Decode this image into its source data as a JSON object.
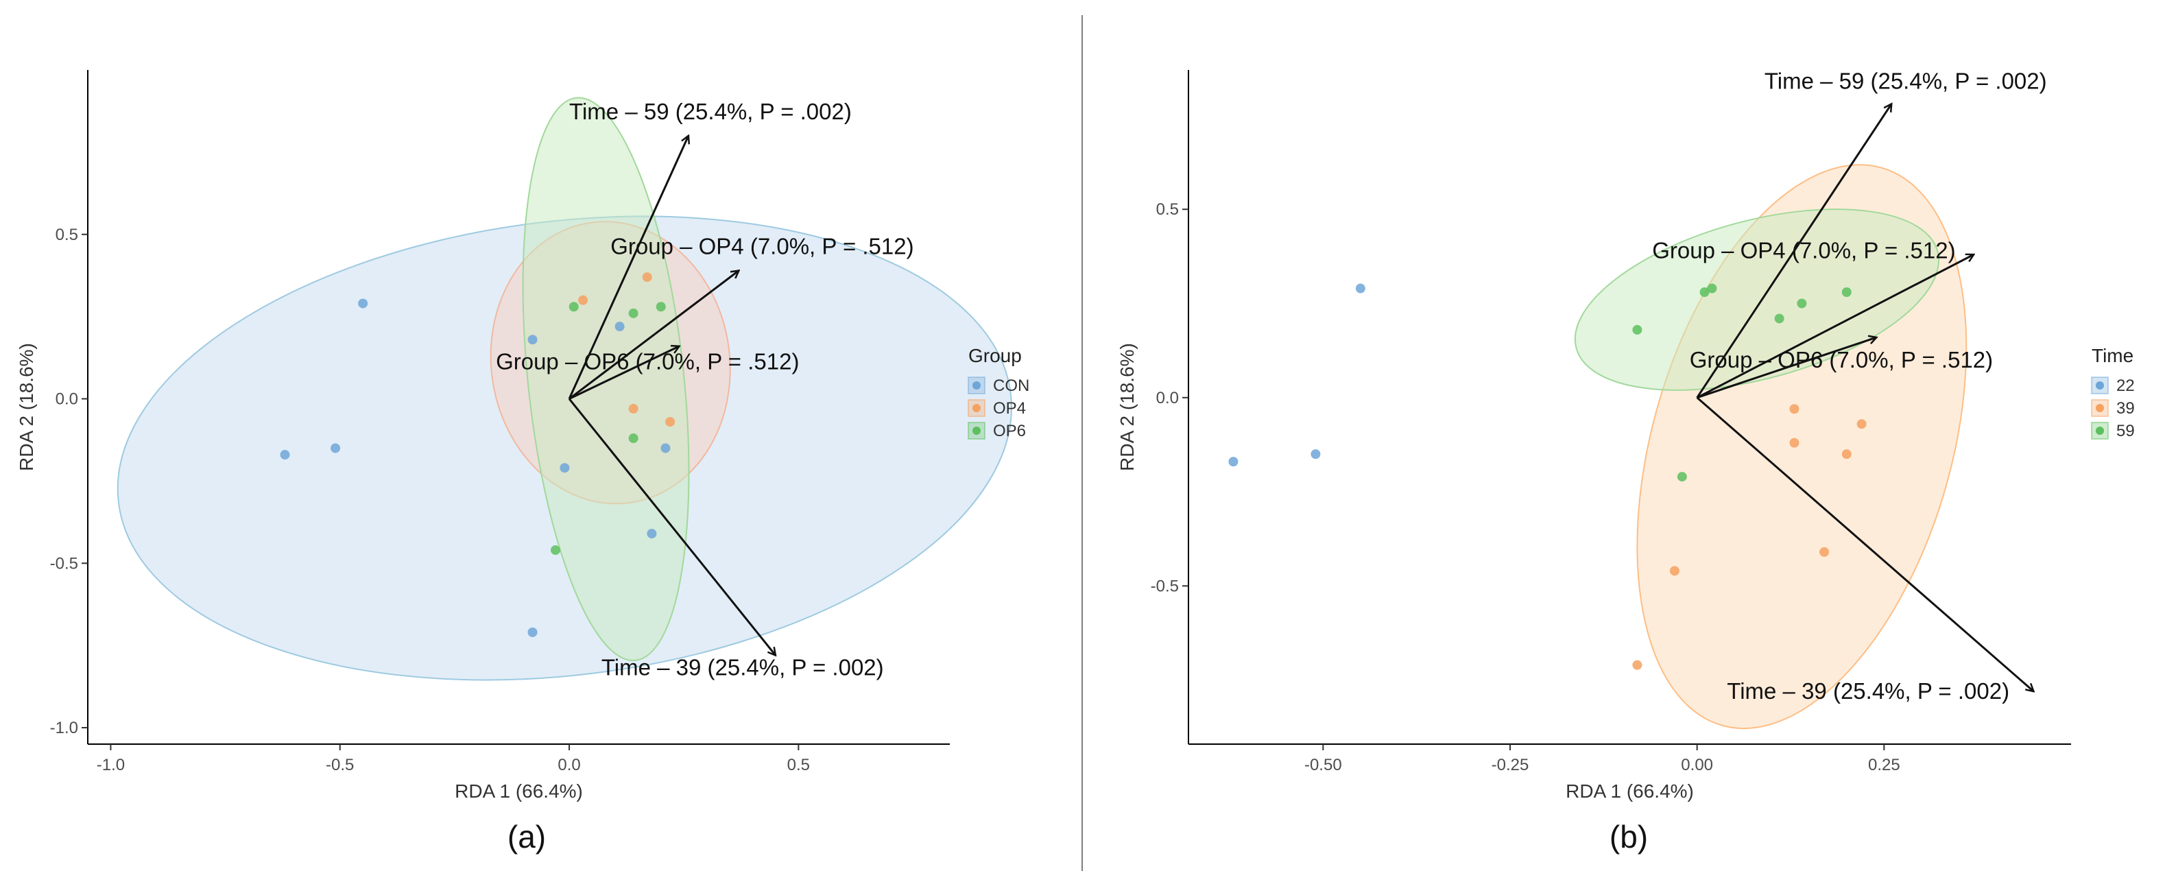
{
  "chart_data": [
    {
      "type": "scatter",
      "panel_label": "(a)",
      "xlabel": "RDA 1 (66.4%)",
      "ylabel": "RDA 2 (18.6%)",
      "xlim": [
        -1.05,
        0.83
      ],
      "ylim": [
        -1.05,
        1.0
      ],
      "xticks": [
        -1.0,
        -0.5,
        0.0,
        0.5
      ],
      "xtick_labels": [
        "-1.0",
        "-0.5",
        "0.0",
        "0.5"
      ],
      "yticks": [
        -1.0,
        -0.5,
        0.0,
        0.5
      ],
      "ytick_labels": [
        "-1.0",
        "-0.5",
        "0.0",
        "0.5"
      ],
      "legend": {
        "title": "Group",
        "position": "right",
        "entries": [
          {
            "label": "CON",
            "color": "#6ea6d8"
          },
          {
            "label": "OP4",
            "color": "#f5a15f"
          },
          {
            "label": "OP6",
            "color": "#5cbf5e"
          }
        ]
      },
      "ellipses": [
        {
          "group": "CON",
          "cx": -0.01,
          "cy": -0.15,
          "rx": 0.98,
          "ry": 0.69,
          "angle": -7,
          "fill": "#c6dbef",
          "stroke": "#9ecae1"
        },
        {
          "group": "OP4",
          "cx": 0.09,
          "cy": 0.11,
          "rx": 0.26,
          "ry": 0.43,
          "angle": -8,
          "fill": "#f9cfc0",
          "stroke": "#f2b8a0"
        },
        {
          "group": "OP6",
          "cx": 0.08,
          "cy": 0.06,
          "rx": 0.17,
          "ry": 0.86,
          "angle": -6,
          "fill": "#c7e9c0",
          "stroke": "#a1d99b"
        }
      ],
      "points": [
        {
          "x": -0.45,
          "y": 0.29,
          "group": "CON"
        },
        {
          "x": -0.62,
          "y": -0.17,
          "group": "CON"
        },
        {
          "x": -0.51,
          "y": -0.15,
          "group": "CON"
        },
        {
          "x": -0.08,
          "y": 0.18,
          "group": "CON"
        },
        {
          "x": 0.11,
          "y": 0.22,
          "group": "CON"
        },
        {
          "x": -0.01,
          "y": -0.21,
          "group": "CON"
        },
        {
          "x": 0.18,
          "y": -0.41,
          "group": "CON"
        },
        {
          "x": -0.08,
          "y": -0.71,
          "group": "CON"
        },
        {
          "x": 0.21,
          "y": -0.15,
          "group": "CON"
        },
        {
          "x": 0.03,
          "y": 0.3,
          "group": "OP4"
        },
        {
          "x": 0.17,
          "y": 0.37,
          "group": "OP4"
        },
        {
          "x": 0.14,
          "y": -0.03,
          "group": "OP4"
        },
        {
          "x": 0.22,
          "y": -0.07,
          "group": "OP4"
        },
        {
          "x": 0.01,
          "y": 0.28,
          "group": "OP6"
        },
        {
          "x": 0.14,
          "y": 0.26,
          "group": "OP6"
        },
        {
          "x": 0.2,
          "y": 0.28,
          "group": "OP6"
        },
        {
          "x": 0.14,
          "y": -0.12,
          "group": "OP6"
        },
        {
          "x": -0.03,
          "y": -0.46,
          "group": "OP6"
        }
      ],
      "arrows": [
        {
          "label": "Time – 59 (25.4%, P = .002)",
          "x": 0.26,
          "y": 0.8,
          "label_x": 0.0,
          "label_y": 0.85,
          "anchor": "start"
        },
        {
          "label": "Group – OP4 (7.0%, P = .512)",
          "x": 0.37,
          "y": 0.39,
          "label_x": 0.09,
          "label_y": 0.44,
          "anchor": "start"
        },
        {
          "label": "Group – OP6 (7.0%, P = .512)",
          "x": 0.24,
          "y": 0.16,
          "label_x": -0.16,
          "label_y": 0.09,
          "anchor": "start"
        },
        {
          "label": "Time – 39 (25.4%, P = .002)",
          "x": 0.45,
          "y": -0.78,
          "label_x": 0.07,
          "label_y": -0.84,
          "anchor": "start"
        }
      ]
    },
    {
      "type": "scatter",
      "panel_label": "(b)",
      "xlabel": "RDA 1 (66.4%)",
      "ylabel": "RDA 2 (18.6%)",
      "xlim": [
        -0.68,
        0.5
      ],
      "ylim": [
        -0.92,
        0.87
      ],
      "xticks": [
        -0.5,
        -0.25,
        0.0,
        0.25
      ],
      "xtick_labels": [
        "-0.50",
        "-0.25",
        "0.00",
        "0.25"
      ],
      "yticks": [
        -0.5,
        0.0,
        0.5
      ],
      "ytick_labels": [
        "-0.5",
        "0.0",
        "0.5"
      ],
      "legend": {
        "title": "Time",
        "position": "right",
        "entries": [
          {
            "label": "22",
            "color": "#6ea6d8"
          },
          {
            "label": "39",
            "color": "#f5a15f"
          },
          {
            "label": "59",
            "color": "#5cbf5e"
          }
        ]
      },
      "ellipses": [
        {
          "group": "39",
          "cx": 0.14,
          "cy": -0.13,
          "rx": 0.2,
          "ry": 0.77,
          "angle": 16,
          "fill": "#fdd9b5",
          "stroke": "#fdbe85"
        },
        {
          "group": "59",
          "cx": 0.08,
          "cy": 0.26,
          "rx": 0.25,
          "ry": 0.21,
          "angle": -15,
          "fill": "#c7e9c0",
          "stroke": "#a1d99b"
        }
      ],
      "points": [
        {
          "x": -0.45,
          "y": 0.29,
          "group": "22"
        },
        {
          "x": -0.62,
          "y": -0.17,
          "group": "22"
        },
        {
          "x": -0.51,
          "y": -0.15,
          "group": "22"
        },
        {
          "x": 0.13,
          "y": -0.03,
          "group": "39"
        },
        {
          "x": 0.22,
          "y": -0.07,
          "group": "39"
        },
        {
          "x": 0.13,
          "y": -0.12,
          "group": "39"
        },
        {
          "x": 0.2,
          "y": -0.15,
          "group": "39"
        },
        {
          "x": 0.17,
          "y": -0.41,
          "group": "39"
        },
        {
          "x": -0.03,
          "y": -0.46,
          "group": "39"
        },
        {
          "x": -0.08,
          "y": -0.71,
          "group": "39"
        },
        {
          "x": 0.01,
          "y": 0.28,
          "group": "59"
        },
        {
          "x": 0.02,
          "y": 0.29,
          "group": "59"
        },
        {
          "x": 0.14,
          "y": 0.25,
          "group": "59"
        },
        {
          "x": 0.2,
          "y": 0.28,
          "group": "59"
        },
        {
          "x": 0.11,
          "y": 0.21,
          "group": "59"
        },
        {
          "x": -0.08,
          "y": 0.18,
          "group": "59"
        },
        {
          "x": -0.02,
          "y": -0.21,
          "group": "59"
        }
      ],
      "arrows": [
        {
          "label": "Time – 59 (25.4%, P = .002)",
          "x": 0.26,
          "y": 0.78,
          "label_x": 0.09,
          "label_y": 0.82,
          "anchor": "start"
        },
        {
          "label": "Group – OP4 (7.0%, P = .512)",
          "x": 0.37,
          "y": 0.38,
          "label_x": -0.06,
          "label_y": 0.37,
          "anchor": "start"
        },
        {
          "label": "Group – OP6 (7.0%, P = .512)",
          "x": 0.24,
          "y": 0.16,
          "label_x": -0.01,
          "label_y": 0.08,
          "anchor": "start"
        },
        {
          "label": "Time – 39 (25.4%, P = .002)",
          "x": 0.45,
          "y": -0.78,
          "label_x": 0.04,
          "label_y": -0.8,
          "anchor": "start"
        }
      ]
    }
  ]
}
